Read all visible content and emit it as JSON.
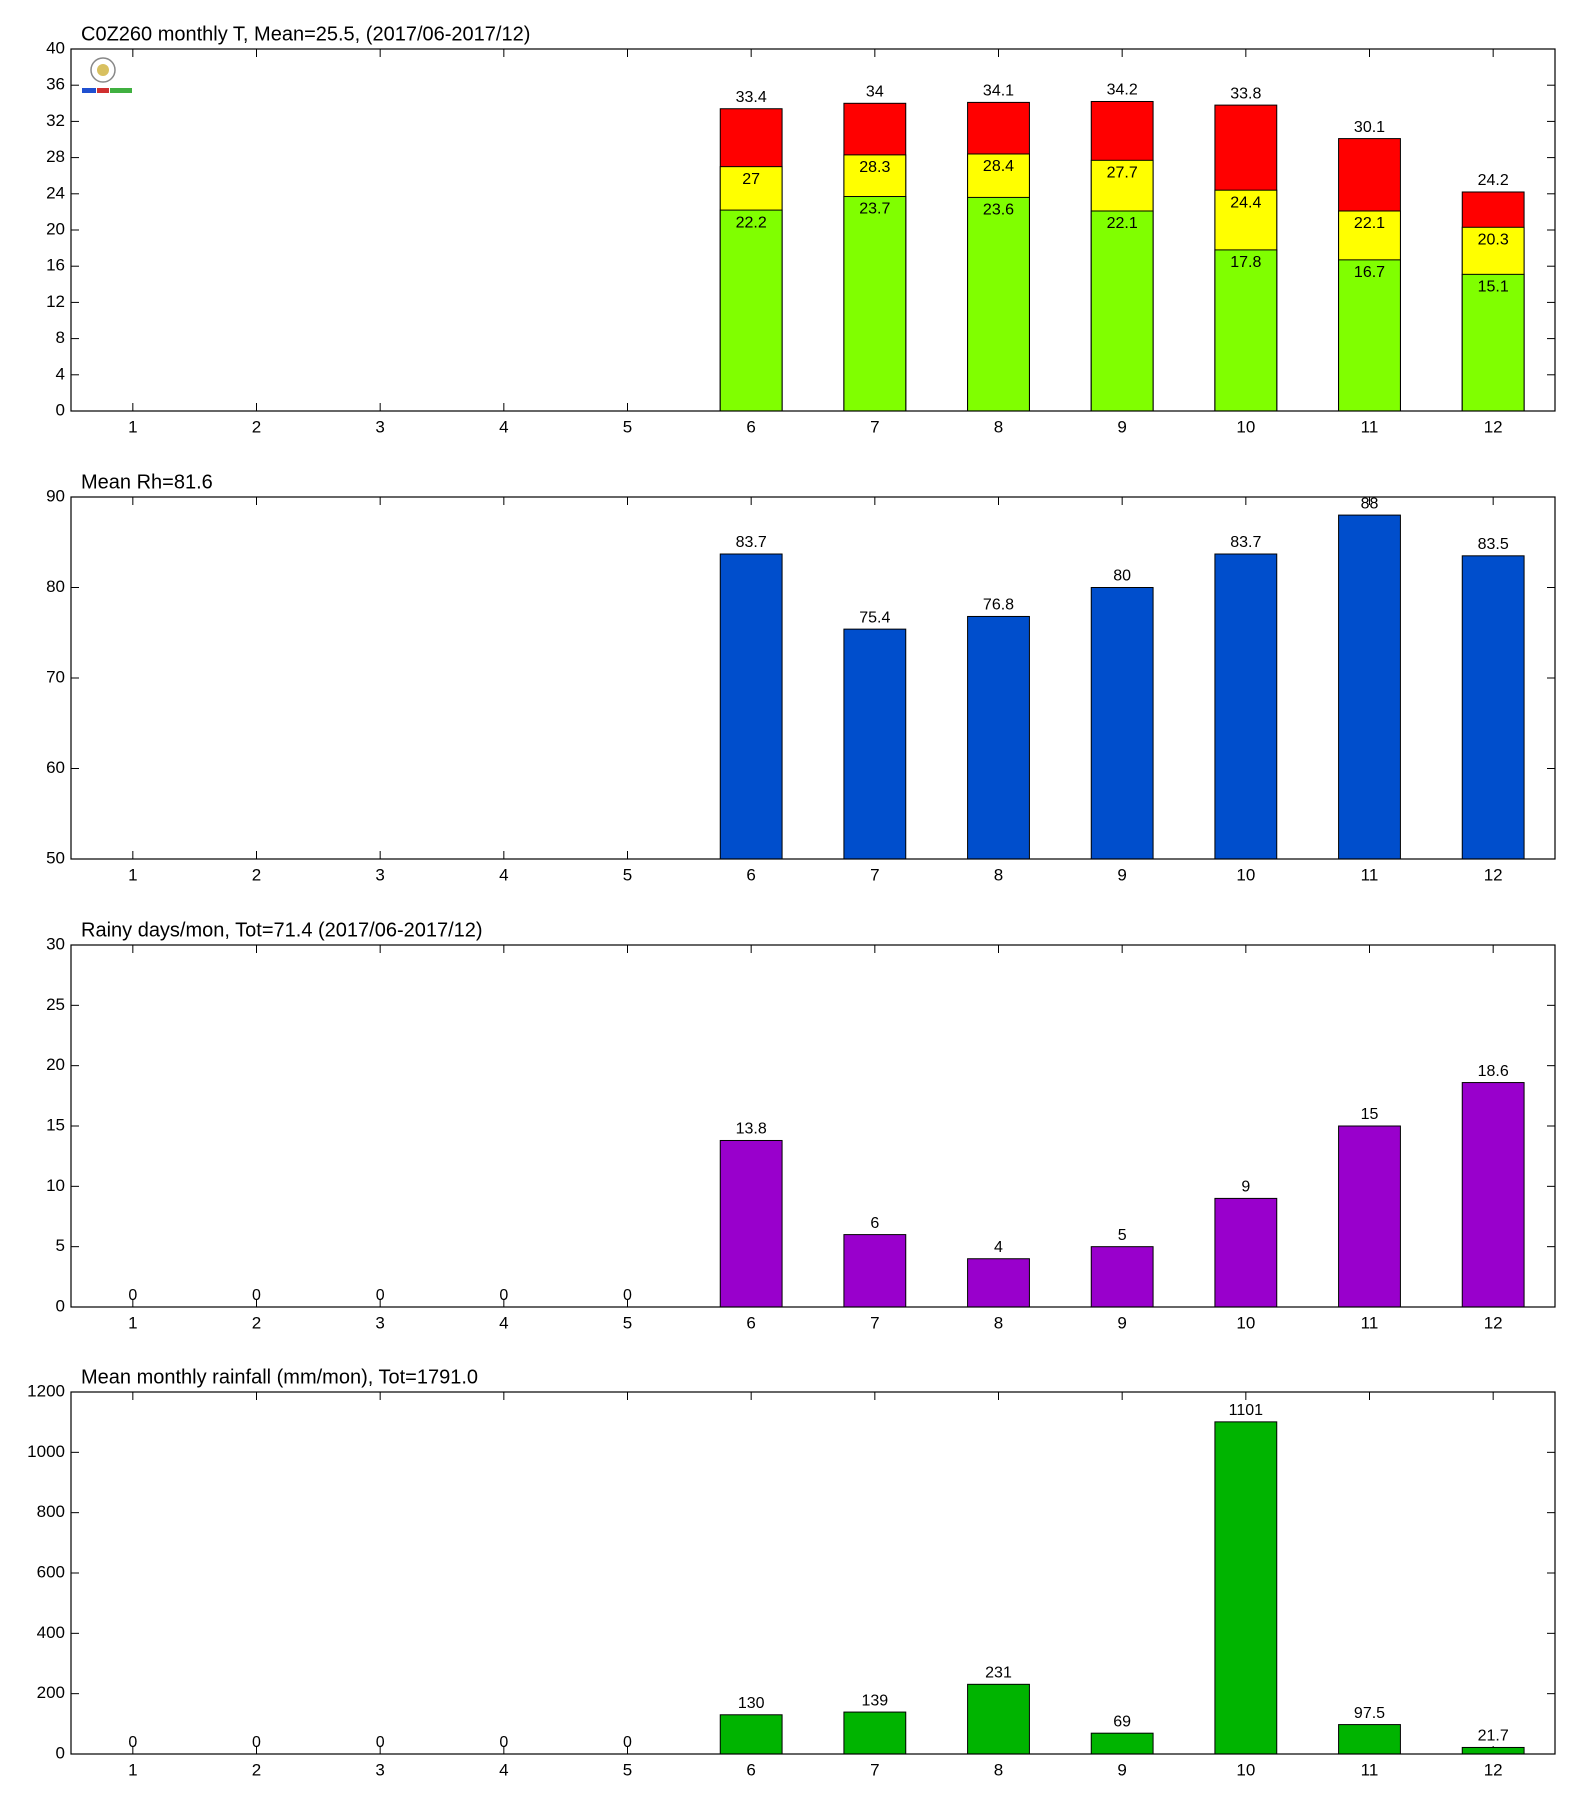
{
  "chart_data": [
    {
      "type": "bar",
      "title": "C0Z260 monthly T, Mean=25.5, (2017/06-2017/12)",
      "categories": [
        1,
        2,
        3,
        4,
        5,
        6,
        7,
        8,
        9,
        10,
        11,
        12
      ],
      "series": [
        {
          "color": "#ff0000",
          "values": [
            null,
            null,
            null,
            null,
            null,
            33.4,
            34,
            34.1,
            34.2,
            33.8,
            30.1,
            24.2
          ]
        },
        {
          "color": "#ffff00",
          "values": [
            null,
            null,
            null,
            null,
            null,
            27,
            28.3,
            28.4,
            27.7,
            24.4,
            22.1,
            20.3
          ]
        },
        {
          "color": "#80ff00",
          "values": [
            null,
            null,
            null,
            null,
            null,
            22.2,
            23.7,
            23.6,
            22.1,
            17.8,
            16.7,
            15.1
          ]
        }
      ],
      "ylim": [
        0,
        40
      ],
      "yticks": [
        0,
        4,
        8,
        12,
        16,
        20,
        24,
        28,
        32,
        36,
        40
      ]
    },
    {
      "type": "bar",
      "title": "Mean Rh=81.6",
      "categories": [
        1,
        2,
        3,
        4,
        5,
        6,
        7,
        8,
        9,
        10,
        11,
        12
      ],
      "values": [
        null,
        null,
        null,
        null,
        null,
        83.7,
        75.4,
        76.8,
        80,
        83.7,
        88,
        83.5
      ],
      "color": "#004ecc",
      "ylim": [
        50,
        90
      ],
      "yticks": [
        50,
        60,
        70,
        80,
        90
      ]
    },
    {
      "type": "bar",
      "title": "Rainy days/mon, Tot=71.4 (2017/06-2017/12)",
      "categories": [
        1,
        2,
        3,
        4,
        5,
        6,
        7,
        8,
        9,
        10,
        11,
        12
      ],
      "values": [
        0,
        0,
        0,
        0,
        0,
        13.8,
        6,
        4,
        5,
        9,
        15,
        18.6
      ],
      "color": "#9900cc",
      "ylim": [
        0,
        30
      ],
      "yticks": [
        0,
        5,
        10,
        15,
        20,
        25,
        30
      ]
    },
    {
      "type": "bar",
      "title": "Mean monthly rainfall (mm/mon), Tot=1791.0",
      "categories": [
        1,
        2,
        3,
        4,
        5,
        6,
        7,
        8,
        9,
        10,
        11,
        12
      ],
      "values": [
        0,
        0,
        0,
        0,
        0,
        130,
        139,
        231,
        69,
        1101,
        97.5,
        21.7
      ],
      "color": "#00b400",
      "ylim": [
        0,
        1200
      ],
      "yticks": [
        0,
        200,
        400,
        600,
        800,
        1000,
        1200
      ]
    }
  ]
}
